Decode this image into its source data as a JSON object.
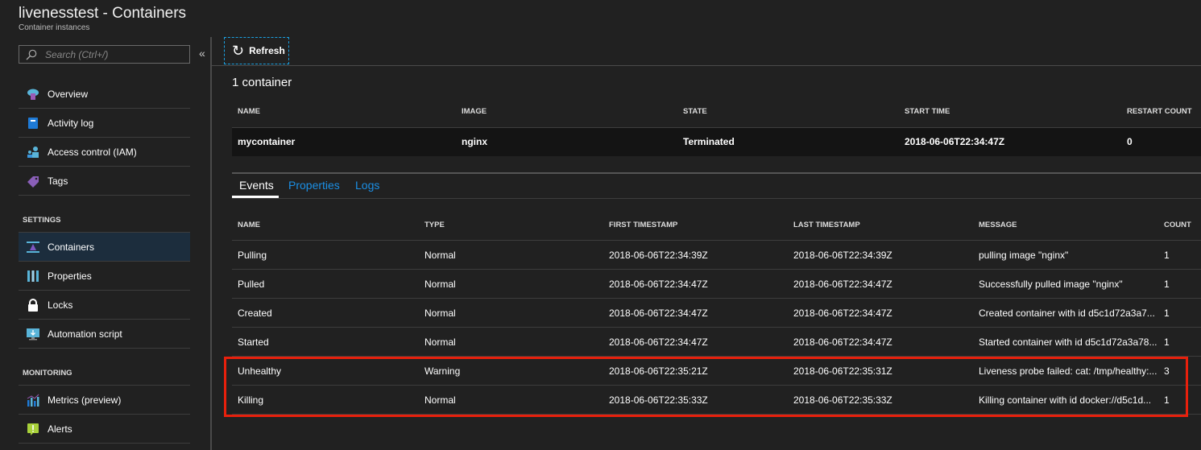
{
  "header": {
    "title": "livenesstest - Containers",
    "subtitle": "Container instances"
  },
  "search": {
    "placeholder": "Search (Ctrl+/)",
    "collapse": "«"
  },
  "sidebar": {
    "items": [
      {
        "label": "Overview",
        "icon": "cloud-container-icon"
      },
      {
        "label": "Activity log",
        "icon": "book-icon"
      },
      {
        "label": "Access control (IAM)",
        "icon": "users-icon"
      },
      {
        "label": "Tags",
        "icon": "tag-icon"
      }
    ],
    "settings_header": "SETTINGS",
    "settings": [
      {
        "label": "Containers",
        "icon": "containers-icon",
        "selected": true
      },
      {
        "label": "Properties",
        "icon": "properties-icon"
      },
      {
        "label": "Locks",
        "icon": "lock-icon"
      },
      {
        "label": "Automation script",
        "icon": "monitor-download-icon"
      }
    ],
    "monitoring_header": "MONITORING",
    "monitoring": [
      {
        "label": "Metrics (preview)",
        "icon": "metrics-icon"
      },
      {
        "label": "Alerts",
        "icon": "alert-icon"
      }
    ]
  },
  "toolbar": {
    "refresh": "Refresh",
    "refresh_icon": "↻"
  },
  "containers": {
    "count_label": "1 container",
    "headers": [
      "NAME",
      "IMAGE",
      "STATE",
      "START TIME",
      "RESTART COUNT"
    ],
    "rows": [
      [
        "mycontainer",
        "nginx",
        "Terminated",
        "2018-06-06T22:34:47Z",
        "0"
      ]
    ]
  },
  "tabs": [
    {
      "label": "Events",
      "active": true
    },
    {
      "label": "Properties"
    },
    {
      "label": "Logs"
    }
  ],
  "events": {
    "headers": [
      "NAME",
      "TYPE",
      "FIRST TIMESTAMP",
      "LAST TIMESTAMP",
      "MESSAGE",
      "COUNT"
    ],
    "rows": [
      [
        "Pulling",
        "Normal",
        "2018-06-06T22:34:39Z",
        "2018-06-06T22:34:39Z",
        "pulling image \"nginx\"",
        "1"
      ],
      [
        "Pulled",
        "Normal",
        "2018-06-06T22:34:47Z",
        "2018-06-06T22:34:47Z",
        "Successfully pulled image \"nginx\"",
        "1"
      ],
      [
        "Created",
        "Normal",
        "2018-06-06T22:34:47Z",
        "2018-06-06T22:34:47Z",
        "Created container with id d5c1d72a3a7...",
        "1"
      ],
      [
        "Started",
        "Normal",
        "2018-06-06T22:34:47Z",
        "2018-06-06T22:34:47Z",
        "Started container with id d5c1d72a3a78...",
        "1"
      ],
      [
        "Unhealthy",
        "Warning",
        "2018-06-06T22:35:21Z",
        "2018-06-06T22:35:31Z",
        "Liveness probe failed: cat: /tmp/healthy:...",
        "3"
      ],
      [
        "Killing",
        "Normal",
        "2018-06-06T22:35:33Z",
        "2018-06-06T22:35:33Z",
        "Killing container with id docker://d5c1d...",
        "1"
      ]
    ]
  },
  "colors": {
    "accent": "#1b8fe5",
    "highlight": "#e8200c",
    "selected": "#1c2d3d"
  }
}
